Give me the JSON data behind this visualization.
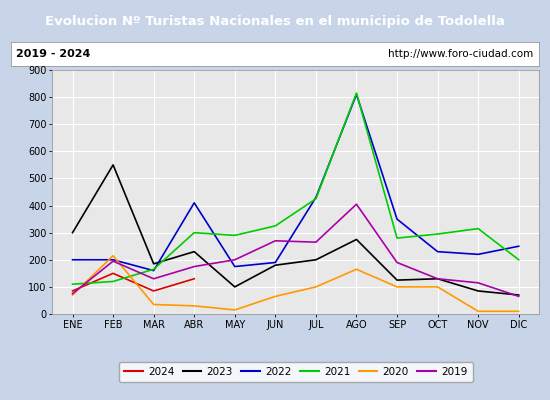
{
  "title": "Evolucion Nº Turistas Nacionales en el municipio de Todolella",
  "subtitle_left": "2019 - 2024",
  "subtitle_right": "http://www.foro-ciudad.com",
  "months": [
    "ENE",
    "FEB",
    "MAR",
    "ABR",
    "MAY",
    "JUN",
    "JUL",
    "AGO",
    "SEP",
    "OCT",
    "NOV",
    "DIC"
  ],
  "ylim": [
    0,
    900
  ],
  "yticks": [
    0,
    100,
    200,
    300,
    400,
    500,
    600,
    700,
    800,
    900
  ],
  "series": {
    "2024": {
      "color": "#dd0000",
      "values": [
        85,
        150,
        85,
        130,
        null,
        null,
        null,
        null,
        null,
        null,
        null,
        null
      ]
    },
    "2023": {
      "color": "#000000",
      "values": [
        300,
        550,
        185,
        230,
        100,
        180,
        200,
        275,
        125,
        130,
        85,
        70
      ]
    },
    "2022": {
      "color": "#0000cc",
      "values": [
        200,
        200,
        160,
        410,
        175,
        190,
        430,
        810,
        350,
        230,
        220,
        250
      ]
    },
    "2021": {
      "color": "#00cc00",
      "values": [
        110,
        120,
        165,
        300,
        290,
        325,
        425,
        815,
        280,
        295,
        315,
        200
      ]
    },
    "2020": {
      "color": "#ff9900",
      "values": [
        70,
        215,
        35,
        30,
        15,
        65,
        100,
        165,
        100,
        100,
        10,
        10
      ]
    },
    "2019": {
      "color": "#aa00aa",
      "values": [
        75,
        195,
        130,
        175,
        200,
        270,
        265,
        405,
        190,
        130,
        115,
        65
      ]
    }
  },
  "title_bg_color": "#5588cc",
  "title_text_color": "#ffffff",
  "plot_bg_color": "#e8e8e8",
  "outer_bg_color": "#c8d4e8",
  "grid_color": "#ffffff",
  "legend_order": [
    "2024",
    "2023",
    "2022",
    "2021",
    "2020",
    "2019"
  ]
}
